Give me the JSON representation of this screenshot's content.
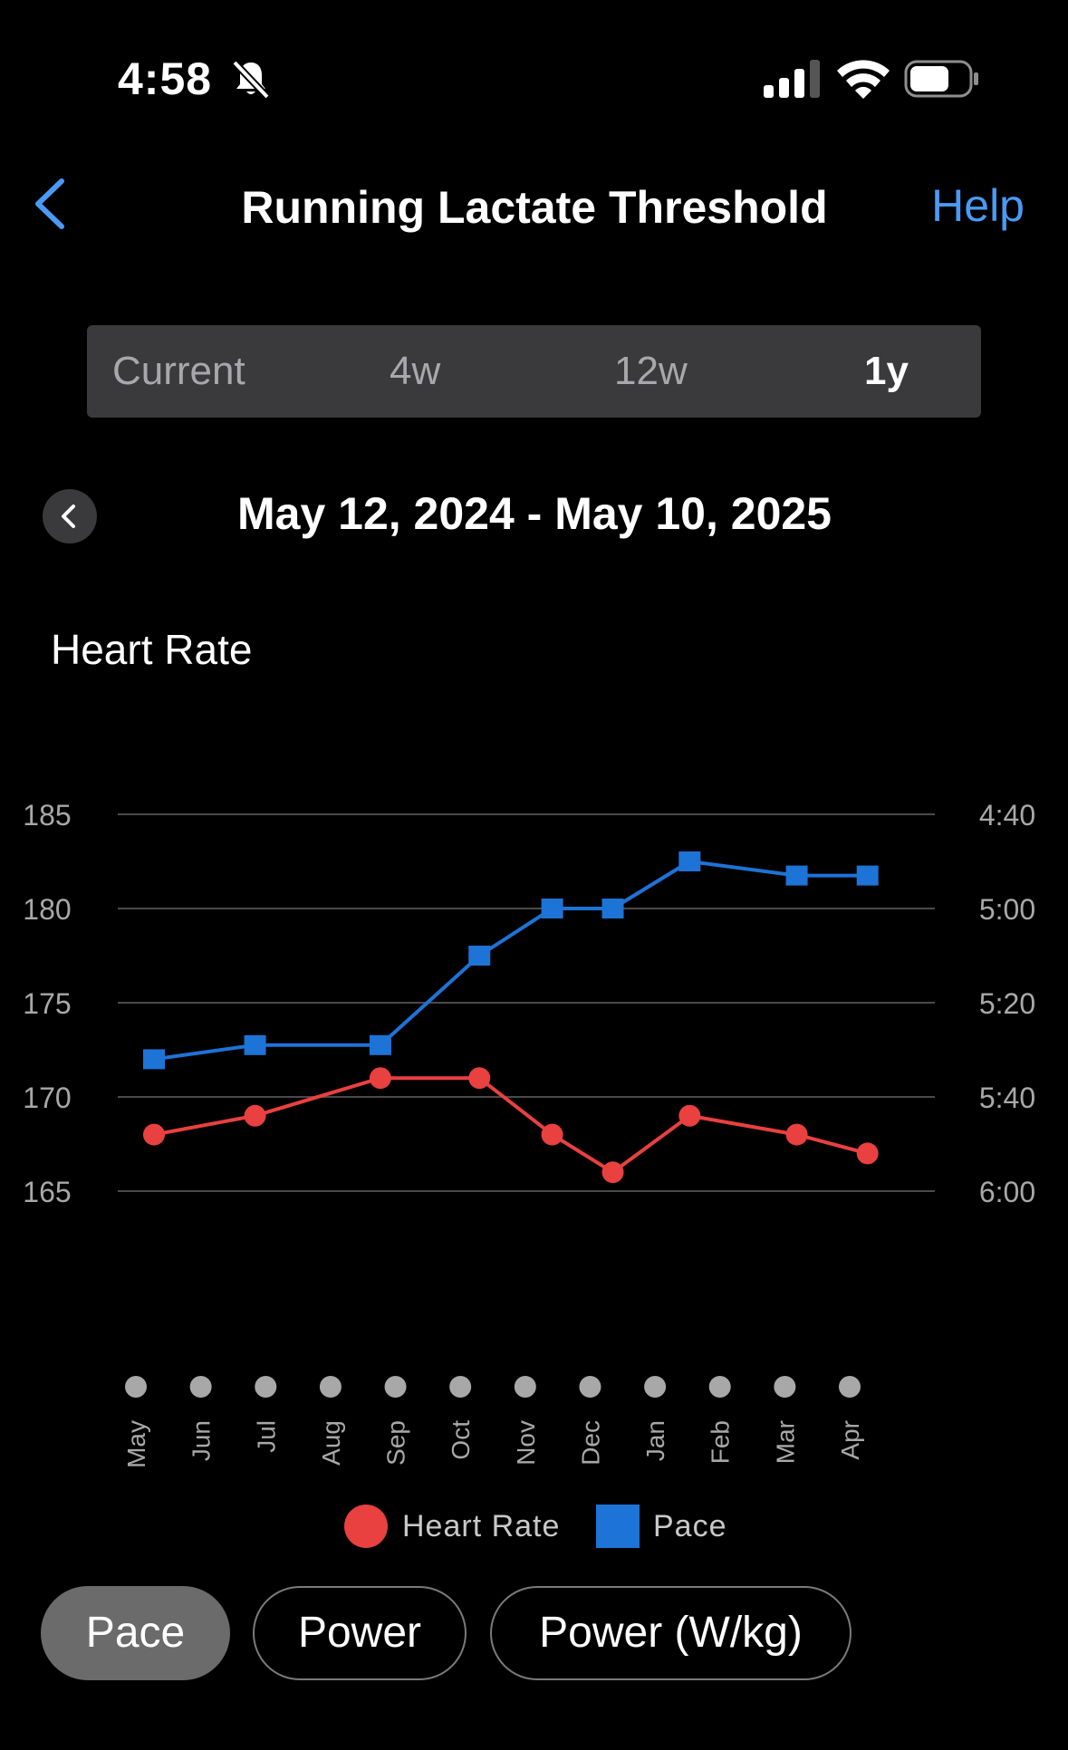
{
  "status_bar": {
    "time": "4:58",
    "icons": [
      "bell-slash-icon",
      "cellular-signal-icon",
      "wifi-icon",
      "battery-icon"
    ]
  },
  "nav": {
    "title": "Running Lactate Threshold",
    "help_label": "Help",
    "accent_color": "#4a9af5"
  },
  "range_tabs": [
    {
      "label": "Current",
      "active": false
    },
    {
      "label": "4w",
      "active": false
    },
    {
      "label": "12w",
      "active": false
    },
    {
      "label": "1y",
      "active": true
    }
  ],
  "date_range": "May 12, 2024 - May 10, 2025",
  "chart_title": "Heart Rate",
  "chart_data": {
    "type": "line",
    "title": "Heart Rate",
    "categories": [
      "May",
      "Jun",
      "Jul",
      "Aug",
      "Sep",
      "Oct",
      "Nov",
      "Dec",
      "Jan",
      "Feb",
      "Mar",
      "Apr"
    ],
    "y_left": {
      "ticks": [
        "185",
        "180",
        "175",
        "170",
        "165"
      ],
      "range": [
        165,
        185
      ]
    },
    "y_right": {
      "ticks": [
        "4:40",
        "5:00",
        "5:20",
        "5:40",
        "6:00"
      ],
      "range_seconds": [
        280,
        360
      ],
      "reversed": true
    },
    "series": [
      {
        "name": "Heart Rate",
        "axis": "left",
        "color": "#e94040",
        "marker": "circle",
        "points": [
          {
            "x": "May 12",
            "y": 168
          },
          {
            "x": "Jul 1",
            "y": 169
          },
          {
            "x": "Sep 1",
            "y": 171
          },
          {
            "x": "Oct 20",
            "y": 171
          },
          {
            "x": "Nov 25",
            "y": 168
          },
          {
            "x": "Dec 25",
            "y": 166
          },
          {
            "x": "Feb 1",
            "y": 169
          },
          {
            "x": "Mar 26",
            "y": 168
          },
          {
            "x": "Apr 30",
            "y": 167
          }
        ]
      },
      {
        "name": "Pace",
        "axis": "right",
        "color": "#1e73d6",
        "marker": "square",
        "points": [
          {
            "x": "May 12",
            "y": "5:32"
          },
          {
            "x": "Jul 1",
            "y": "5:29"
          },
          {
            "x": "Sep 1",
            "y": "5:29"
          },
          {
            "x": "Oct 20",
            "y": "5:10"
          },
          {
            "x": "Nov 25",
            "y": "5:00"
          },
          {
            "x": "Dec 25",
            "y": "5:00"
          },
          {
            "x": "Feb 1",
            "y": "4:50"
          },
          {
            "x": "Mar 26",
            "y": "4:53"
          },
          {
            "x": "Apr 30",
            "y": "4:53"
          }
        ]
      }
    ],
    "grid": true,
    "legend": "bottom-center"
  },
  "legend": [
    {
      "label": "Heart Rate",
      "color": "#e94040",
      "marker": "circle"
    },
    {
      "label": "Pace",
      "color": "#1e73d6",
      "marker": "square"
    }
  ],
  "metric_tabs": [
    {
      "label": "Pace",
      "selected": true
    },
    {
      "label": "Power",
      "selected": false
    },
    {
      "label": "Power (W/kg)",
      "selected": false
    }
  ]
}
